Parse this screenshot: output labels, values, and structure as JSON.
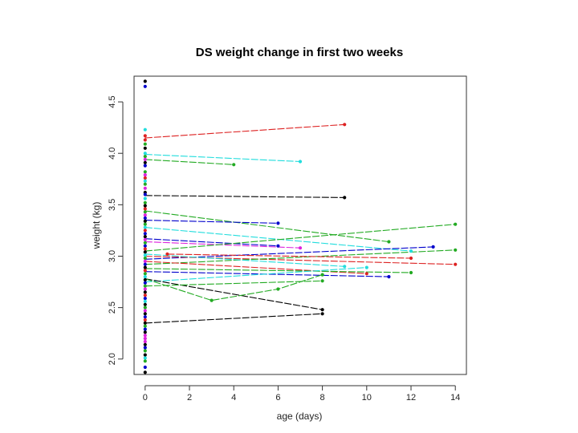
{
  "chart_data": {
    "type": "line",
    "title": "DS weight change in first two weeks",
    "xlabel": "age (days)",
    "ylabel": "weight (kg)",
    "xlim": [
      -0.5,
      14.5
    ],
    "ylim": [
      1.85,
      4.75
    ],
    "xticks": [
      0,
      2,
      4,
      6,
      8,
      10,
      12,
      14
    ],
    "yticks": [
      2.0,
      2.5,
      3.0,
      3.5,
      4.0,
      4.5
    ],
    "xtick_labels": [
      "0",
      "2",
      "4",
      "6",
      "8",
      "10",
      "12",
      "14"
    ],
    "ytick_labels": [
      "2.0",
      "2.5",
      "3.0",
      "3.5",
      "4.0",
      "4.5"
    ],
    "grid": false,
    "series": [
      {
        "name": "s1",
        "color": "#dd2222",
        "points": [
          [
            0,
            4.15
          ],
          [
            9,
            4.28
          ]
        ]
      },
      {
        "name": "s2",
        "color": "#22dddd",
        "points": [
          [
            0,
            3.99
          ],
          [
            7,
            3.92
          ]
        ]
      },
      {
        "name": "s3",
        "color": "#22aa22",
        "points": [
          [
            0,
            3.94
          ],
          [
            4,
            3.89
          ]
        ]
      },
      {
        "name": "s4",
        "color": "#000000",
        "points": [
          [
            0,
            3.59
          ],
          [
            9,
            3.57
          ]
        ]
      },
      {
        "name": "s5",
        "color": "#22aa22",
        "points": [
          [
            0,
            3.44
          ],
          [
            11,
            3.14
          ]
        ]
      },
      {
        "name": "s6",
        "color": "#0000cc",
        "points": [
          [
            0,
            3.35
          ],
          [
            6,
            3.32
          ]
        ]
      },
      {
        "name": "s7",
        "color": "#22dddd",
        "points": [
          [
            0,
            3.28
          ],
          [
            12,
            3.05
          ]
        ]
      },
      {
        "name": "s8",
        "color": "#dd22dd",
        "points": [
          [
            0,
            3.14
          ],
          [
            7,
            3.08
          ]
        ]
      },
      {
        "name": "s9",
        "color": "#0000cc",
        "points": [
          [
            0,
            3.17
          ],
          [
            6,
            3.1
          ]
        ]
      },
      {
        "name": "s10",
        "color": "#22aa22",
        "points": [
          [
            0,
            3.05
          ],
          [
            14,
            3.31
          ]
        ]
      },
      {
        "name": "s11",
        "color": "#0000cc",
        "points": [
          [
            0,
            2.97
          ],
          [
            13,
            3.09
          ]
        ]
      },
      {
        "name": "s12",
        "color": "#dd2222",
        "points": [
          [
            0,
            3.0
          ],
          [
            14,
            2.92
          ]
        ]
      },
      {
        "name": "s13",
        "color": "#22aa22",
        "points": [
          [
            0,
            2.92
          ],
          [
            14,
            3.06
          ]
        ]
      },
      {
        "name": "s14",
        "color": "#dd2222",
        "points": [
          [
            1,
            3.02
          ],
          [
            12,
            2.98
          ]
        ]
      },
      {
        "name": "s15",
        "color": "#dd2222",
        "points": [
          [
            0,
            2.95
          ],
          [
            10,
            2.83
          ]
        ]
      },
      {
        "name": "s16",
        "color": "#22dddd",
        "points": [
          [
            0,
            3.02
          ],
          [
            9,
            2.9
          ]
        ]
      },
      {
        "name": "s17",
        "color": "#0000cc",
        "points": [
          [
            0,
            2.85
          ],
          [
            11,
            2.8
          ]
        ]
      },
      {
        "name": "s18",
        "color": "#22aa22",
        "points": [
          [
            0,
            2.88
          ],
          [
            12,
            2.84
          ]
        ]
      },
      {
        "name": "s19",
        "color": "#22dddd",
        "points": [
          [
            0,
            2.75
          ],
          [
            10,
            2.89
          ]
        ]
      },
      {
        "name": "s20",
        "color": "#000000",
        "points": [
          [
            0,
            2.78
          ],
          [
            8,
            2.48
          ]
        ]
      },
      {
        "name": "s21",
        "color": "#22aa22",
        "points": [
          [
            0,
            2.78
          ],
          [
            3,
            2.57
          ],
          [
            6,
            2.68
          ],
          [
            8,
            2.82
          ]
        ]
      },
      {
        "name": "s22",
        "color": "#22aa22",
        "points": [
          [
            0,
            2.71
          ],
          [
            8,
            2.76
          ]
        ]
      },
      {
        "name": "s23",
        "color": "#000000",
        "points": [
          [
            0,
            2.35
          ],
          [
            8,
            2.44
          ]
        ]
      }
    ],
    "birth_points": [
      {
        "y": 4.7,
        "color": "#000000"
      },
      {
        "y": 4.65,
        "color": "#0000cc"
      },
      {
        "y": 4.23,
        "color": "#22dddd"
      },
      {
        "y": 4.17,
        "color": "#dd2222"
      },
      {
        "y": 4.13,
        "color": "#dd2222"
      },
      {
        "y": 4.09,
        "color": "#22aa22"
      },
      {
        "y": 4.05,
        "color": "#000000"
      },
      {
        "y": 4.0,
        "color": "#22dddd"
      },
      {
        "y": 3.97,
        "color": "#22aa22"
      },
      {
        "y": 3.94,
        "color": "#dd22dd"
      },
      {
        "y": 3.91,
        "color": "#000000"
      },
      {
        "y": 3.88,
        "color": "#0000cc"
      },
      {
        "y": 3.82,
        "color": "#22aa22"
      },
      {
        "y": 3.79,
        "color": "#dd22dd"
      },
      {
        "y": 3.76,
        "color": "#dd2222"
      },
      {
        "y": 3.73,
        "color": "#22dddd"
      },
      {
        "y": 3.7,
        "color": "#22aa22"
      },
      {
        "y": 3.66,
        "color": "#dd22dd"
      },
      {
        "y": 3.62,
        "color": "#000000"
      },
      {
        "y": 3.6,
        "color": "#0000cc"
      },
      {
        "y": 3.56,
        "color": "#22dddd"
      },
      {
        "y": 3.52,
        "color": "#22aa22"
      },
      {
        "y": 3.49,
        "color": "#000000"
      },
      {
        "y": 3.46,
        "color": "#dd2222"
      },
      {
        "y": 3.43,
        "color": "#22aa22"
      },
      {
        "y": 3.4,
        "color": "#dd22dd"
      },
      {
        "y": 3.37,
        "color": "#0000cc"
      },
      {
        "y": 3.34,
        "color": "#000000"
      },
      {
        "y": 3.31,
        "color": "#22aa22"
      },
      {
        "y": 3.28,
        "color": "#22dddd"
      },
      {
        "y": 3.25,
        "color": "#dd2222"
      },
      {
        "y": 3.22,
        "color": "#0000cc"
      },
      {
        "y": 3.19,
        "color": "#000000"
      },
      {
        "y": 3.16,
        "color": "#dd22dd"
      },
      {
        "y": 3.13,
        "color": "#22aa22"
      },
      {
        "y": 3.1,
        "color": "#0000cc"
      },
      {
        "y": 3.07,
        "color": "#dd2222"
      },
      {
        "y": 3.04,
        "color": "#000000"
      },
      {
        "y": 3.01,
        "color": "#22dddd"
      },
      {
        "y": 2.98,
        "color": "#22aa22"
      },
      {
        "y": 2.95,
        "color": "#dd22dd"
      },
      {
        "y": 2.92,
        "color": "#0000cc"
      },
      {
        "y": 2.89,
        "color": "#000000"
      },
      {
        "y": 2.86,
        "color": "#dd2222"
      },
      {
        "y": 2.83,
        "color": "#22aa22"
      },
      {
        "y": 2.8,
        "color": "#22dddd"
      },
      {
        "y": 2.77,
        "color": "#000000"
      },
      {
        "y": 2.74,
        "color": "#0000cc"
      },
      {
        "y": 2.71,
        "color": "#22aa22"
      },
      {
        "y": 2.68,
        "color": "#dd22dd"
      },
      {
        "y": 2.65,
        "color": "#000000"
      },
      {
        "y": 2.62,
        "color": "#dd2222"
      },
      {
        "y": 2.59,
        "color": "#0000cc"
      },
      {
        "y": 2.56,
        "color": "#22dddd"
      },
      {
        "y": 2.53,
        "color": "#000000"
      },
      {
        "y": 2.5,
        "color": "#22aa22"
      },
      {
        "y": 2.47,
        "color": "#dd22dd"
      },
      {
        "y": 2.44,
        "color": "#000000"
      },
      {
        "y": 2.41,
        "color": "#0000cc"
      },
      {
        "y": 2.38,
        "color": "#dd2222"
      },
      {
        "y": 2.35,
        "color": "#000000"
      },
      {
        "y": 2.32,
        "color": "#22aa22"
      },
      {
        "y": 2.29,
        "color": "#0000cc"
      },
      {
        "y": 2.26,
        "color": "#000000"
      },
      {
        "y": 2.23,
        "color": "#dd22dd"
      },
      {
        "y": 2.2,
        "color": "#dd22dd"
      },
      {
        "y": 2.17,
        "color": "#dd22dd"
      },
      {
        "y": 2.14,
        "color": "#000000"
      },
      {
        "y": 2.11,
        "color": "#0000cc"
      },
      {
        "y": 2.08,
        "color": "#22aa22"
      },
      {
        "y": 2.04,
        "color": "#000000"
      },
      {
        "y": 2.01,
        "color": "#22dddd"
      },
      {
        "y": 1.98,
        "color": "#22aa22"
      },
      {
        "y": 1.92,
        "color": "#0000cc"
      },
      {
        "y": 1.87,
        "color": "#000000"
      }
    ]
  }
}
